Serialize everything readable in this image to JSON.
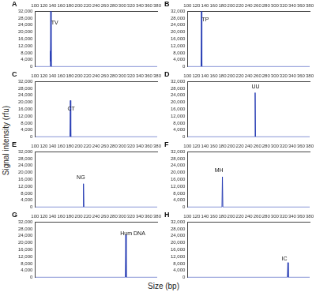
{
  "figure": {
    "x_label": "Size (bp)",
    "y_label": "Signal intensity (rfu)"
  },
  "chart_data": [
    {
      "type": "line",
      "title": "A",
      "x": [
        100,
        134,
        135,
        135.5,
        136,
        137,
        380
      ],
      "values": [
        0,
        0,
        9000,
        3000,
        32000,
        0,
        0
      ],
      "color": "#2a3fb5",
      "xlim": [
        100,
        380
      ],
      "xticks": [
        100,
        120,
        140,
        160,
        180,
        200,
        220,
        240,
        260,
        280,
        300,
        320,
        340,
        360,
        380
      ],
      "ylim": [
        0,
        32000
      ],
      "yticks": [
        0,
        4000,
        8000,
        12000,
        16000,
        20000,
        24000,
        28000,
        32000
      ],
      "grid": false,
      "annotations": [
        {
          "text": "TV",
          "x": 145,
          "y": 25000
        }
      ]
    },
    {
      "type": "line",
      "title": "B",
      "x": [
        100,
        131,
        132,
        133,
        380
      ],
      "values": [
        0,
        0,
        32000,
        0,
        0
      ],
      "color": "#2a3fb5",
      "xlim": [
        100,
        380
      ],
      "xticks": [
        100,
        120,
        140,
        160,
        180,
        200,
        220,
        240,
        260,
        280,
        300,
        320,
        340,
        360,
        380
      ],
      "ylim": [
        0,
        32000
      ],
      "yticks": [
        0,
        4000,
        8000,
        12000,
        16000,
        20000,
        24000,
        28000,
        32000
      ],
      "grid": false,
      "annotations": [
        {
          "text": "TP",
          "x": 141,
          "y": 27000
        }
      ]
    },
    {
      "type": "line",
      "title": "C",
      "x": [
        100,
        180,
        181,
        182,
        380
      ],
      "values": [
        0,
        0,
        21000,
        0,
        0
      ],
      "color": "#2a3fb5",
      "xlim": [
        100,
        380
      ],
      "xticks": [
        100,
        120,
        140,
        160,
        180,
        200,
        220,
        240,
        260,
        280,
        300,
        320,
        340,
        360,
        380
      ],
      "ylim": [
        0,
        32000
      ],
      "yticks": [
        0,
        4000,
        8000,
        12000,
        16000,
        20000,
        24000,
        28000,
        32000
      ],
      "grid": false,
      "annotations": [
        {
          "text": "CT",
          "x": 183,
          "y": 16000
        }
      ]
    },
    {
      "type": "line",
      "title": "D",
      "x": [
        100,
        254,
        255,
        256,
        380
      ],
      "values": [
        0,
        0,
        25500,
        0,
        0
      ],
      "color": "#2a3fb5",
      "xlim": [
        100,
        380
      ],
      "xticks": [
        100,
        120,
        140,
        160,
        180,
        200,
        220,
        240,
        260,
        280,
        300,
        320,
        340,
        360,
        380
      ],
      "ylim": [
        0,
        32000
      ],
      "yticks": [
        0,
        4000,
        8000,
        12000,
        16000,
        20000,
        24000,
        28000,
        32000
      ],
      "grid": false,
      "annotations": [
        {
          "text": "UU",
          "x": 256,
          "y": 29000
        }
      ]
    },
    {
      "type": "line",
      "title": "E",
      "x": [
        100,
        210,
        211,
        212,
        380
      ],
      "values": [
        0,
        0,
        13500,
        0,
        0
      ],
      "color": "#2a3fb5",
      "xlim": [
        100,
        380
      ],
      "xticks": [
        100,
        120,
        140,
        160,
        180,
        200,
        220,
        240,
        260,
        280,
        300,
        320,
        340,
        360,
        380
      ],
      "ylim": [
        0,
        32000
      ],
      "yticks": [
        0,
        4000,
        8000,
        12000,
        16000,
        20000,
        24000,
        28000,
        32000
      ],
      "grid": false,
      "annotations": [
        {
          "text": "NG",
          "x": 205,
          "y": 17000
        }
      ]
    },
    {
      "type": "line",
      "title": "F",
      "x": [
        100,
        179,
        180,
        181,
        380
      ],
      "values": [
        0,
        0,
        17500,
        0,
        0
      ],
      "color": "#2a3fb5",
      "xlim": [
        100,
        380
      ],
      "xticks": [
        100,
        120,
        140,
        160,
        180,
        200,
        220,
        240,
        260,
        280,
        300,
        320,
        340,
        360,
        380
      ],
      "ylim": [
        0,
        32000
      ],
      "yticks": [
        0,
        4000,
        8000,
        12000,
        16000,
        20000,
        24000,
        28000,
        32000
      ],
      "grid": false,
      "annotations": [
        {
          "text": "MH",
          "x": 172,
          "y": 21000
        }
      ]
    },
    {
      "type": "line",
      "title": "G",
      "x": [
        100,
        307,
        308,
        309,
        380
      ],
      "values": [
        0,
        0,
        24500,
        0,
        0
      ],
      "color": "#2a3fb5",
      "xlim": [
        100,
        380
      ],
      "xticks": [
        100,
        120,
        140,
        160,
        180,
        200,
        220,
        240,
        260,
        280,
        300,
        320,
        340,
        360,
        380
      ],
      "ylim": [
        0,
        32000
      ],
      "yticks": [
        0,
        4000,
        8000,
        12000,
        16000,
        20000,
        24000,
        28000,
        32000
      ],
      "grid": false,
      "annotations": [
        {
          "text": "Hum DNA",
          "x": 324,
          "y": 25000
        }
      ]
    },
    {
      "type": "line",
      "title": "H",
      "x": [
        100,
        329,
        330,
        331,
        380
      ],
      "values": [
        0,
        0,
        8500,
        0,
        0
      ],
      "color": "#2a3fb5",
      "xlim": [
        100,
        380
      ],
      "xticks": [
        100,
        120,
        140,
        160,
        180,
        200,
        220,
        240,
        260,
        280,
        300,
        320,
        340,
        360,
        380
      ],
      "ylim": [
        0,
        32000
      ],
      "yticks": [
        0,
        4000,
        8000,
        12000,
        16000,
        20000,
        24000,
        28000,
        32000
      ],
      "grid": false,
      "annotations": [
        {
          "text": "IC",
          "x": 322,
          "y": 10500
        }
      ]
    }
  ]
}
